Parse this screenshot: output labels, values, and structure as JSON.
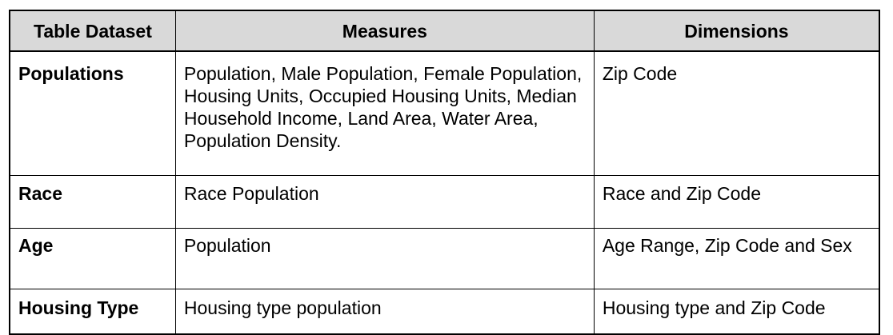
{
  "table": {
    "headers": [
      "Table Dataset",
      "Measures",
      "Dimensions"
    ],
    "rows": [
      {
        "dataset": "Populations",
        "measures": "Population, Male Population, Female Population, Housing Units, Occupied Housing Units, Median Household Income, Land Area, Water Area, Population Density.",
        "dimensions": "Zip Code"
      },
      {
        "dataset": "Race",
        "measures": "Race Population",
        "dimensions": "Race and Zip Code"
      },
      {
        "dataset": "Age",
        "measures": "Population",
        "dimensions": "Age Range, Zip Code and Sex"
      },
      {
        "dataset": "Housing Type",
        "measures": "Housing type population",
        "dimensions": "Housing type and Zip Code"
      }
    ]
  }
}
